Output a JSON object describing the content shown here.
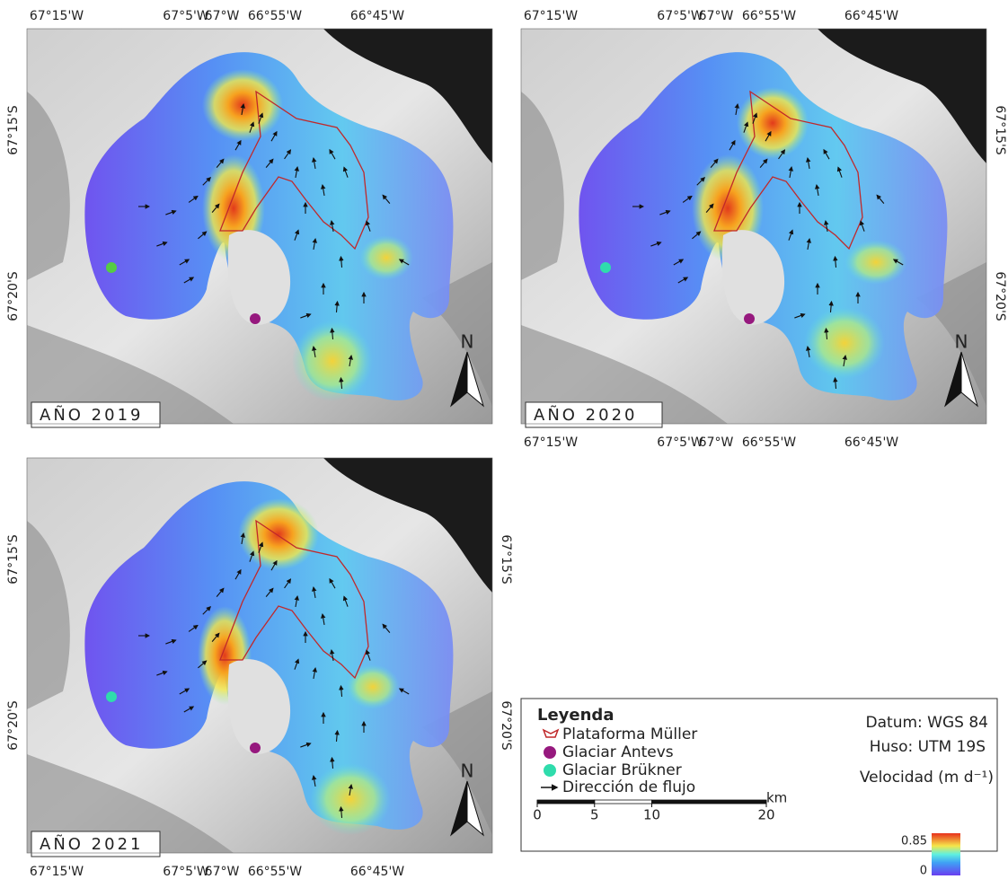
{
  "lon_labels": [
    "67°15'W",
    "67°5'W",
    "67°W",
    "66°55'W",
    "66°45'W"
  ],
  "lat_labels": [
    "67°15'S",
    "67°20'S"
  ],
  "panels": [
    {
      "label": "AÑO 2019"
    },
    {
      "label": "AÑO 2020"
    },
    {
      "label": "AÑO 2021"
    }
  ],
  "north": "N",
  "legend": {
    "title": "Leyenda",
    "items": [
      "Plataforma Müller",
      "Glaciar Antevs",
      "Glaciar Brükner",
      "Dirección de flujo"
    ],
    "datum": "Datum: WGS 84",
    "zone": "Huso: UTM 19S",
    "velocity_title": "Velocidad (m d⁻¹)",
    "colorbar": {
      "max": 0.85,
      "min": 0
    },
    "scale": {
      "ticks": [
        0,
        5,
        10,
        20
      ],
      "unit": "km"
    }
  }
}
